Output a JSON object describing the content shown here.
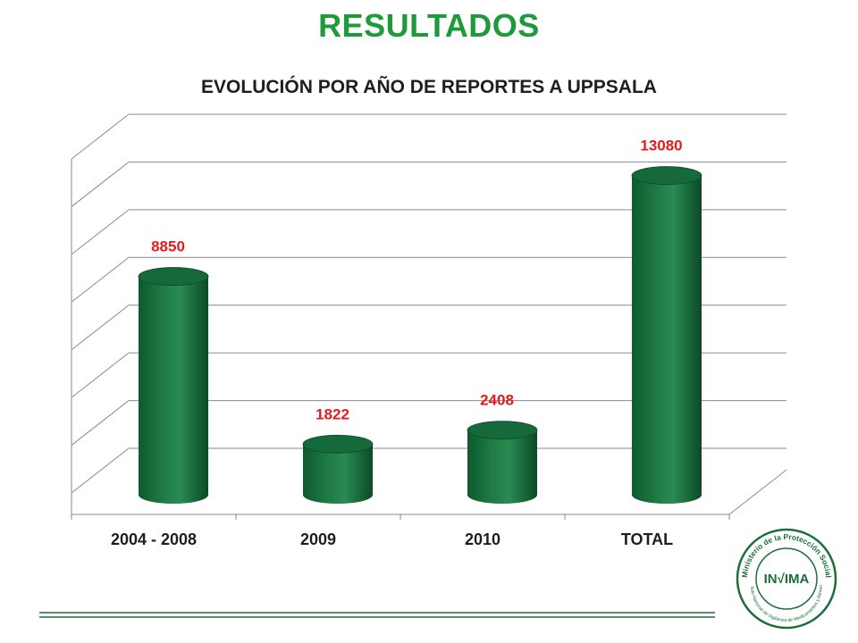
{
  "slide": {
    "heading": "RESULTADOS",
    "subheading": "EVOLUCIÓN POR AÑO DE REPORTES A UPPSALA"
  },
  "colors": {
    "heading": "#1f9a3a",
    "bar_dark": "#0d5a2e",
    "bar_mid": "#1f7a44",
    "bar_light": "#3aa066",
    "data_label": "#e31b1b",
    "grid": "#8a8a8a",
    "logo": "#1a6f3a"
  },
  "chart_data": {
    "type": "bar",
    "style": "3d-cylinder",
    "categories": [
      "2004 - 2008",
      "2009",
      "2010",
      "TOTAL"
    ],
    "values": [
      8850,
      1822,
      2408,
      13080
    ],
    "data_labels": [
      "8850",
      "1822",
      "2408",
      "13080"
    ],
    "title": "EVOLUCIÓN POR AÑO DE REPORTES A UPPSALA",
    "xlabel": "",
    "ylabel": "",
    "ylim": [
      0,
      14000
    ],
    "grid": true,
    "legend": "none"
  },
  "logo": {
    "brand": "IN√IMA",
    "ring_top": "Ministerio de la Protección Social",
    "ring_bottom": "Instituto Nacional de Vigilancia de Medicamentos y Alimentos"
  }
}
